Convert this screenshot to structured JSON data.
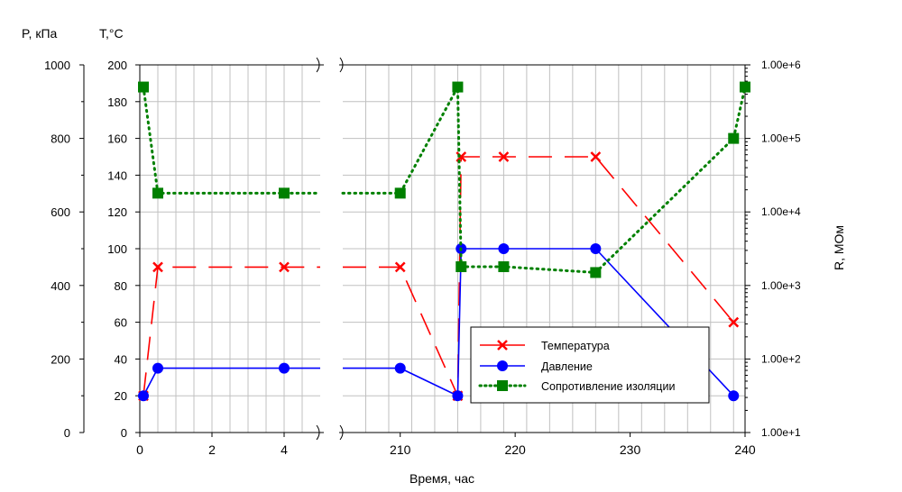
{
  "chart_data": {
    "type": "line",
    "x_title": "Время, час",
    "x_ranges": [
      [
        0,
        5
      ],
      [
        205,
        240
      ]
    ],
    "x_ticks_left": [
      "0",
      "2",
      "4"
    ],
    "x_ticks_right": [
      "210",
      "220",
      "230",
      "240"
    ],
    "p_axis": {
      "title": "P, кПа",
      "range": [
        0,
        1000
      ],
      "ticks": [
        "0",
        "200",
        "400",
        "600",
        "800",
        "1000"
      ]
    },
    "t_axis": {
      "title": "T,°C",
      "range": [
        0,
        200
      ],
      "ticks": [
        "0",
        "20",
        "40",
        "60",
        "80",
        "100",
        "120",
        "140",
        "160",
        "180",
        "200"
      ]
    },
    "r_axis": {
      "title": "R, МОм",
      "scale": "log",
      "range": [
        10,
        1000000
      ],
      "ticks": [
        "1.00e+1",
        "1.00e+2",
        "1.00e+3",
        "1.00e+4",
        "1.00e+5",
        "1.00e+6"
      ]
    },
    "grid": true,
    "legend_position": "bottom-right",
    "series": [
      {
        "name": "Температура",
        "axis": "T",
        "color": "#ff0000",
        "marker": "x",
        "line": "dashed",
        "points": [
          [
            0.1,
            20
          ],
          [
            0.5,
            90
          ],
          [
            4,
            90
          ],
          [
            210,
            90
          ],
          [
            215,
            20
          ],
          [
            215.3,
            150
          ],
          [
            219,
            150
          ],
          [
            227,
            150
          ],
          [
            239,
            60
          ]
        ]
      },
      {
        "name": "Давление",
        "axis": "P",
        "color": "#0000ff",
        "marker": "circle",
        "line": "solid",
        "points": [
          [
            0.1,
            100
          ],
          [
            0.5,
            175
          ],
          [
            4,
            175
          ],
          [
            210,
            175
          ],
          [
            215,
            100
          ],
          [
            215.3,
            500
          ],
          [
            219,
            500
          ],
          [
            227,
            500
          ],
          [
            239,
            100
          ]
        ]
      },
      {
        "name": "Сопротивление изоляции",
        "axis": "R",
        "color": "#008000",
        "marker": "square",
        "line": "dotted",
        "points": [
          [
            0.1,
            500000
          ],
          [
            0.5,
            18000
          ],
          [
            4,
            18000
          ],
          [
            210,
            18000
          ],
          [
            215,
            500000
          ],
          [
            215.3,
            1800
          ],
          [
            219,
            1800
          ],
          [
            227,
            1500
          ],
          [
            239,
            100000
          ],
          [
            240,
            500000
          ]
        ]
      }
    ]
  }
}
